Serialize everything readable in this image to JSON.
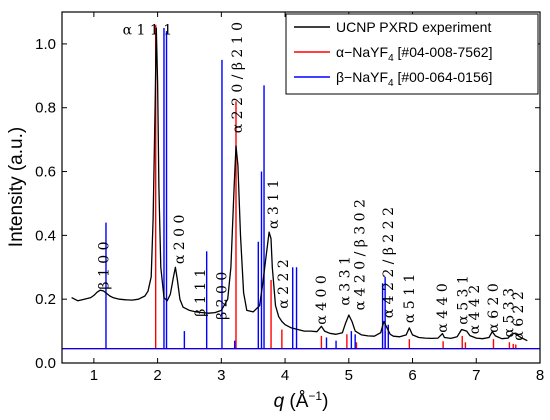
{
  "chart_data": {
    "type": "line",
    "xlabel": "q (Å⁻¹)",
    "xlabel_italic": "q",
    "xlabel_unit": "(Å",
    "xlabel_sup": "−1",
    "xlabel_close": ")",
    "ylabel": "Intensity (a.u.)",
    "xlim": [
      0.5,
      8.0
    ],
    "ylim": [
      0.0,
      1.1
    ],
    "xticks": [
      1,
      2,
      3,
      4,
      5,
      6,
      7,
      8
    ],
    "xtick_labels": [
      "1",
      "2",
      "3",
      "4",
      "5",
      "6",
      "7",
      "8"
    ],
    "yticks": [
      0.0,
      0.2,
      0.4,
      0.6,
      0.8,
      1.0
    ],
    "ytick_labels": [
      "0.0",
      "0.2",
      "0.4",
      "0.6",
      "0.8",
      "1.0"
    ],
    "grid": false,
    "legend_position": "top-right",
    "colors": {
      "experiment": "#000000",
      "alpha": "#ff0000",
      "beta": "#0000ff"
    },
    "series": [
      {
        "key": "experiment",
        "legend": "UCNP PXRD experiment",
        "kind": "curve",
        "x": [
          0.65,
          0.75,
          0.85,
          0.95,
          1.0,
          1.05,
          1.1,
          1.15,
          1.2,
          1.25,
          1.3,
          1.4,
          1.5,
          1.6,
          1.7,
          1.8,
          1.85,
          1.9,
          1.93,
          1.96,
          1.98,
          2.0,
          2.02,
          2.05,
          2.1,
          2.15,
          2.2,
          2.25,
          2.28,
          2.31,
          2.35,
          2.4,
          2.5,
          2.6,
          2.7,
          2.8,
          2.9,
          3.0,
          3.1,
          3.15,
          3.2,
          3.23,
          3.26,
          3.3,
          3.35,
          3.4,
          3.5,
          3.6,
          3.65,
          3.7,
          3.75,
          3.78,
          3.8,
          3.85,
          3.9,
          3.95,
          4.0,
          4.1,
          4.2,
          4.3,
          4.4,
          4.5,
          4.57,
          4.62,
          4.7,
          4.8,
          4.9,
          4.95,
          5.0,
          5.05,
          5.1,
          5.2,
          5.3,
          5.4,
          5.5,
          5.55,
          5.6,
          5.65,
          5.7,
          5.8,
          5.9,
          5.95,
          6.0,
          6.1,
          6.2,
          6.3,
          6.4,
          6.47,
          6.5,
          6.6,
          6.7,
          6.77,
          6.85,
          6.9,
          7.0,
          7.1,
          7.2,
          7.25,
          7.3,
          7.4,
          7.5,
          7.55,
          7.6,
          7.7,
          7.8
        ],
        "y": [
          0.205,
          0.195,
          0.2,
          0.205,
          0.212,
          0.222,
          0.228,
          0.226,
          0.218,
          0.21,
          0.205,
          0.2,
          0.198,
          0.197,
          0.2,
          0.21,
          0.225,
          0.27,
          0.45,
          0.8,
          1.05,
          0.88,
          0.55,
          0.3,
          0.205,
          0.195,
          0.215,
          0.27,
          0.3,
          0.26,
          0.2,
          0.175,
          0.165,
          0.16,
          0.158,
          0.156,
          0.158,
          0.165,
          0.2,
          0.3,
          0.55,
          0.68,
          0.62,
          0.4,
          0.22,
          0.165,
          0.16,
          0.18,
          0.25,
          0.33,
          0.41,
          0.39,
          0.3,
          0.18,
          0.145,
          0.13,
          0.12,
          0.11,
          0.105,
          0.1,
          0.1,
          0.098,
          0.115,
          0.1,
          0.093,
          0.09,
          0.095,
          0.125,
          0.15,
          0.13,
          0.1,
          0.088,
          0.085,
          0.084,
          0.095,
          0.13,
          0.11,
          0.09,
          0.084,
          0.082,
          0.088,
          0.11,
          0.088,
          0.08,
          0.078,
          0.077,
          0.078,
          0.092,
          0.08,
          0.077,
          0.082,
          0.105,
          0.1,
          0.086,
          0.078,
          0.076,
          0.08,
          0.098,
          0.085,
          0.076,
          0.078,
          0.09,
          0.093,
          0.08,
          0.07
        ]
      },
      {
        "key": "alpha",
        "legend": "α−NaYF4 [#04-008-7562]",
        "legend_main": "α−NaYF",
        "legend_sub": "4",
        "legend_code": " [#04-008-7562]",
        "kind": "sticks",
        "baseline": 0.045,
        "x": [
          1.97,
          3.23,
          3.78,
          3.95,
          4.57,
          4.97,
          5.12,
          5.57,
          5.95,
          6.48,
          6.78,
          6.83,
          7.27,
          7.52,
          7.58,
          7.62
        ],
        "y": [
          1.06,
          0.82,
          0.26,
          0.105,
          0.085,
          0.09,
          0.065,
          0.1,
          0.075,
          0.068,
          0.085,
          0.065,
          0.075,
          0.065,
          0.06,
          0.058
        ]
      },
      {
        "key": "beta",
        "legend": "β−NaYF4 [#00-064-0156]",
        "legend_main": "β−NaYF",
        "legend_sub": "4",
        "legend_code": " [#00-064-0156]",
        "kind": "sticks",
        "baseline": 0.045,
        "x": [
          1.19,
          2.1,
          2.14,
          2.42,
          2.77,
          3.01,
          3.21,
          3.58,
          3.63,
          3.67,
          4.12,
          4.18,
          4.65,
          4.8,
          5.04,
          5.1,
          5.53,
          5.57,
          5.62
        ],
        "y": [
          0.44,
          1.05,
          1.04,
          0.1,
          0.35,
          0.95,
          0.07,
          0.38,
          0.6,
          0.87,
          0.3,
          0.3,
          0.08,
          0.07,
          0.1,
          0.09,
          0.25,
          0.27,
          0.12
        ]
      }
    ],
    "annotations": [
      {
        "text": "β 1 0 0",
        "x": 1.17,
        "y": 0.23,
        "rotate": true
      },
      {
        "text": "α 1 1 1",
        "x": 1.84,
        "y": 1.03,
        "rotate": false
      },
      {
        "text": "α 2 0 0",
        "x": 2.35,
        "y": 0.31,
        "rotate": true
      },
      {
        "text": "β 1 1 1",
        "x": 2.68,
        "y": 0.145,
        "rotate": true
      },
      {
        "text": "β 2 0 0",
        "x": 3.02,
        "y": 0.135,
        "rotate": true
      },
      {
        "text": "α 2 2 0 / β 2 1 0",
        "x": 3.26,
        "y": 0.72,
        "rotate": true
      },
      {
        "text": "α 3 1 1",
        "x": 3.83,
        "y": 0.42,
        "rotate": true
      },
      {
        "text": "α 2 2 2",
        "x": 3.98,
        "y": 0.17,
        "rotate": true
      },
      {
        "text": "α 4 0 0",
        "x": 4.58,
        "y": 0.12,
        "rotate": true
      },
      {
        "text": "α 3 3 1",
        "x": 4.95,
        "y": 0.18,
        "rotate": true
      },
      {
        "text": "α 4 2 0 / β 3 0 2",
        "x": 5.18,
        "y": 0.165,
        "rotate": true
      },
      {
        "text": "α 4 2 2 / β 2 2 2",
        "x": 5.63,
        "y": 0.14,
        "rotate": true
      },
      {
        "text": "α 5 1 1",
        "x": 5.96,
        "y": 0.125,
        "rotate": true
      },
      {
        "text": "α 4 4 0",
        "x": 6.48,
        "y": 0.095,
        "rotate": true
      },
      {
        "text": "α 5 3 1",
        "x": 6.8,
        "y": 0.12,
        "rotate": true
      },
      {
        "text": "α 4 4 2",
        "x": 6.98,
        "y": 0.09,
        "rotate": true
      },
      {
        "text": "α 6 2 0",
        "x": 7.28,
        "y": 0.095,
        "rotate": true
      },
      {
        "text": "α 5 3 3",
        "x": 7.52,
        "y": 0.08,
        "rotate": true
      },
      {
        "text": "α 6 2 2",
        "x": 7.67,
        "y": 0.07,
        "rotate": true
      }
    ]
  }
}
